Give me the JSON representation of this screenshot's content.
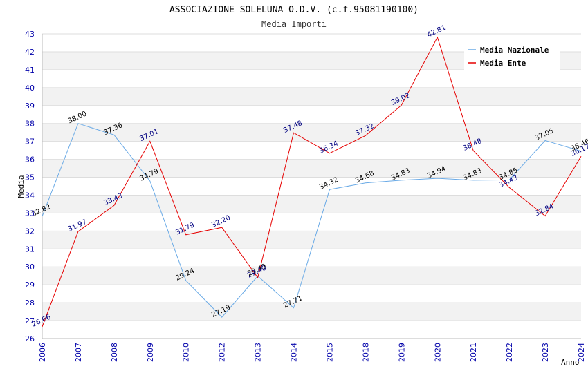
{
  "chart_data": {
    "type": "line",
    "title": "ASSOCIAZIONE SOLELUNA O.D.V. (c.f.95081190100)",
    "subtitle": "Media Importi",
    "xlabel": "Anno",
    "ylabel": "Media",
    "ylim": [
      26,
      43
    ],
    "grid": true,
    "legend_position": "top-right",
    "categories": [
      "2006",
      "2007",
      "2008",
      "2009",
      "2010",
      "2012",
      "2013",
      "2014",
      "2015",
      "2018",
      "2019",
      "2020",
      "2021",
      "2022",
      "2023",
      "2024"
    ],
    "series": [
      {
        "name": "Media Nazionale",
        "color": "#6aaae6",
        "values": [
          32.82,
          38.0,
          37.36,
          34.79,
          29.24,
          27.19,
          29.49,
          27.71,
          34.32,
          34.68,
          34.83,
          34.94,
          34.83,
          34.85,
          37.05,
          36.46
        ],
        "labels": [
          "32.82",
          "38.00",
          "37.36",
          "34.79",
          "29.24",
          "27.19",
          "29.49",
          "27.71",
          "34.32",
          "34.68",
          "34.83",
          "34.94",
          "34.83",
          "34.85",
          "37.05",
          "36.46"
        ]
      },
      {
        "name": "Media Ente",
        "color": "#e60000",
        "values": [
          26.66,
          31.97,
          33.43,
          37.01,
          31.79,
          32.2,
          29.4,
          37.48,
          36.34,
          37.32,
          39.02,
          42.81,
          36.48,
          34.43,
          32.84,
          36.17
        ],
        "labels": [
          "26.66",
          "31.97",
          "33.43",
          "37.01",
          "31.79",
          "32.20",
          "29.40",
          "37.48",
          "36.34",
          "37.32",
          "39.02",
          "42.81",
          "36.48",
          "34.43",
          "32.84",
          "36.17"
        ]
      }
    ]
  }
}
